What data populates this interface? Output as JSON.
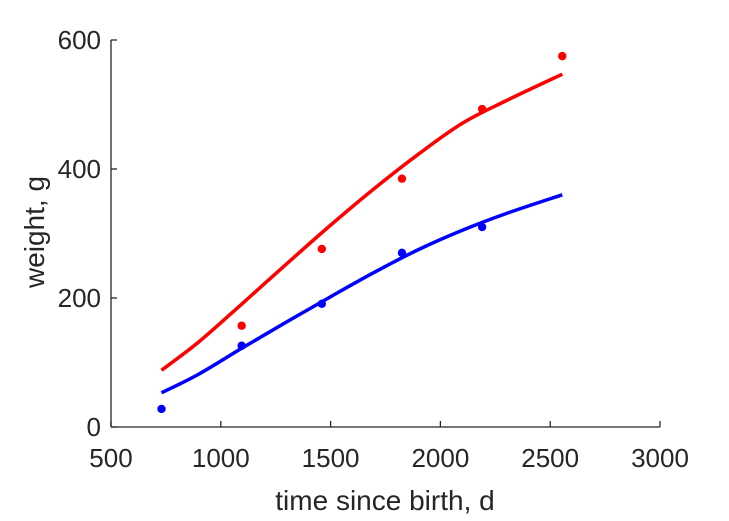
{
  "chart_data": {
    "type": "scatter",
    "title": "",
    "xlabel": "time since birth, d",
    "ylabel": "weight, g",
    "xlim": [
      500,
      3000
    ],
    "ylim": [
      0,
      600
    ],
    "xticks": [
      500,
      1000,
      1500,
      2000,
      2500,
      3000
    ],
    "yticks": [
      0,
      200,
      400,
      600
    ],
    "grid": false,
    "legend": "none",
    "series": [
      {
        "kind": "points",
        "color": "#ff0000",
        "x": [
          1095,
          1460,
          1825,
          2190,
          2555
        ],
        "y": [
          157,
          276,
          385,
          493,
          575
        ]
      },
      {
        "kind": "points",
        "color": "#0000ff",
        "x": [
          730,
          1095,
          1460,
          1825,
          2190
        ],
        "y": [
          28,
          126,
          191,
          270,
          310
        ]
      },
      {
        "kind": "line",
        "color": "#ff0000",
        "x": [
          730,
          900,
          1100,
          1300,
          1500,
          1700,
          1900,
          2100,
          2300,
          2555
        ],
        "y": [
          88,
          132,
          192,
          253,
          313,
          370,
          423,
          471,
          506,
          547
        ]
      },
      {
        "kind": "line",
        "color": "#0000ff",
        "x": [
          730,
          900,
          1100,
          1300,
          1500,
          1700,
          1900,
          2100,
          2300,
          2555
        ],
        "y": [
          53,
          82,
          123,
          163,
          202,
          240,
          275,
          305,
          331,
          360
        ]
      }
    ]
  }
}
